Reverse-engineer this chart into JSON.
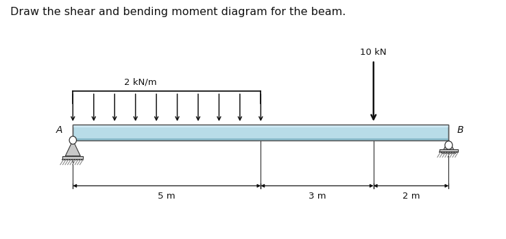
{
  "title": "Draw the shear and bending moment diagram for the beam.",
  "title_fontsize": 11.5,
  "beam_color": "#b8dce8",
  "beam_color_light": "#d0eaf5",
  "beam_color_dark": "#8abccc",
  "beam_outline": "#555555",
  "support_fill": "#c8c8c8",
  "support_outline": "#333333",
  "ground_color": "#888888",
  "arrow_color": "#111111",
  "dim_color": "#111111",
  "background_color": "#ffffff",
  "text_color": "#111111",
  "label_A": "A",
  "label_B": "B",
  "dist_load_label": "2 kN/m",
  "point_load_label": "10 kN",
  "dim_segments": [
    {
      "label": "5 m"
    },
    {
      "label": "3 m"
    },
    {
      "label": "2 m"
    }
  ]
}
